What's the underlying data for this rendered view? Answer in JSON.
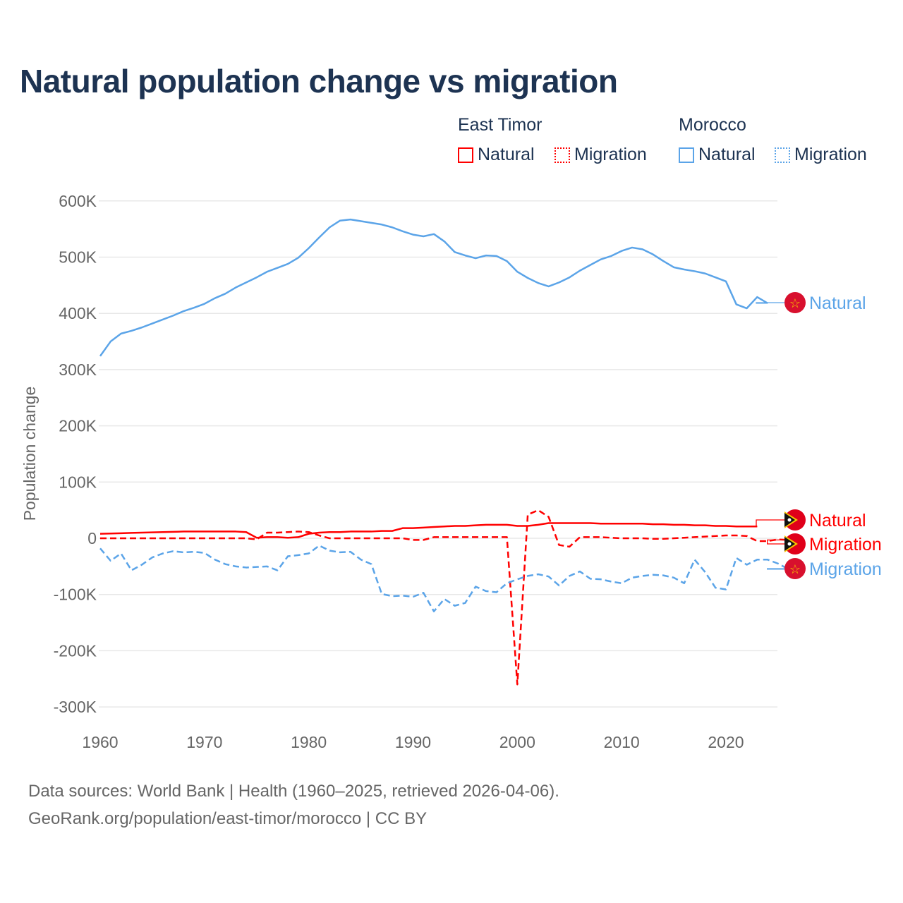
{
  "chart_data": {
    "type": "line",
    "title": "Natural population change vs migration",
    "ylabel": "Population change",
    "xlabel": "",
    "ylim": [
      -300000,
      600000
    ],
    "xlim": [
      1960,
      2025
    ],
    "yticks": [
      "600K",
      "500K",
      "400K",
      "300K",
      "200K",
      "100K",
      "0",
      "-100K",
      "-200K",
      "-300K"
    ],
    "ytick_values": [
      600000,
      500000,
      400000,
      300000,
      200000,
      100000,
      0,
      -100000,
      -200000,
      -300000
    ],
    "xticks": [
      "1960",
      "1970",
      "1980",
      "1990",
      "2000",
      "2010",
      "2020"
    ],
    "xtick_values": [
      1960,
      1970,
      1980,
      1990,
      2000,
      2010,
      2020
    ],
    "grid": true,
    "legend": {
      "placement": "top-right",
      "groups": [
        {
          "country": "East Timor",
          "items": [
            "Natural",
            "Migration"
          ]
        },
        {
          "country": "Morocco",
          "items": [
            "Natural",
            "Migration"
          ]
        }
      ]
    },
    "series": [
      {
        "name": "Morocco Natural",
        "label": "Natural",
        "color": "#5ba4e8",
        "dash": false,
        "start": 1960,
        "values": [
          324,
          350,
          364,
          369,
          375,
          382,
          389,
          396,
          404,
          410,
          417,
          427,
          435,
          446,
          455,
          464,
          474,
          481,
          488,
          499,
          516,
          535,
          553,
          565,
          567,
          564,
          561,
          558,
          553,
          546,
          540,
          537,
          541,
          528,
          509,
          503,
          498,
          503,
          502,
          493,
          474,
          463,
          454,
          448,
          455,
          464,
          476,
          486,
          496,
          502,
          511,
          517,
          514,
          505,
          493,
          482,
          478,
          475,
          471,
          464,
          457,
          416,
          409,
          429,
          418
        ]
      },
      {
        "name": "East Timor Natural",
        "label": "Natural",
        "color": "#ff0000",
        "dash": false,
        "start": 1960,
        "values": [
          8,
          8.5,
          9,
          9.5,
          10,
          10.5,
          11,
          11.5,
          12,
          12,
          12,
          12,
          12,
          12,
          11,
          1,
          2,
          2,
          1,
          2,
          8,
          10,
          11,
          11,
          12,
          12,
          12,
          13,
          13,
          18,
          18,
          19,
          20,
          21,
          22,
          22,
          23,
          24,
          24,
          24,
          22,
          22,
          24,
          27,
          27,
          27,
          27,
          27,
          26,
          26,
          26,
          26,
          26,
          25,
          25,
          24,
          24,
          23,
          23,
          22,
          22,
          21,
          21,
          21
        ]
      },
      {
        "name": "East Timor Migration",
        "label": "Migration",
        "color": "#ff0000",
        "dash": true,
        "start": 1960,
        "values": [
          0,
          0,
          0,
          0,
          0,
          0,
          0,
          0,
          0,
          0,
          0,
          0,
          0,
          0,
          0,
          -2,
          10,
          10,
          11,
          12,
          11,
          5,
          0,
          0,
          0,
          0,
          0,
          0,
          0,
          0,
          -3,
          -3,
          2,
          2,
          2,
          2,
          2,
          2,
          2,
          2,
          -260,
          42,
          50,
          38,
          -12,
          -15,
          2,
          2,
          2,
          1,
          0,
          0,
          0,
          -1,
          -1,
          0,
          1,
          2,
          3,
          4,
          5,
          5,
          4,
          -5,
          -5,
          -2,
          -3
        ]
      },
      {
        "name": "Morocco Migration",
        "label": "Migration",
        "color": "#5ba4e8",
        "dash": true,
        "start": 1960,
        "values": [
          -18,
          -40,
          -27,
          -57,
          -47,
          -34,
          -27,
          -23,
          -25,
          -24,
          -26,
          -38,
          -46,
          -50,
          -52,
          -51,
          -50,
          -57,
          -32,
          -30,
          -27,
          -13,
          -22,
          -25,
          -24,
          -38,
          -46,
          -99,
          -103,
          -102,
          -104,
          -97,
          -130,
          -108,
          -120,
          -115,
          -86,
          -94,
          -96,
          -80,
          -73,
          -67,
          -64,
          -68,
          -84,
          -67,
          -59,
          -72,
          -73,
          -77,
          -80,
          -70,
          -67,
          -65,
          -66,
          -70,
          -80,
          -38,
          -60,
          -88,
          -91,
          -35,
          -47,
          -38,
          -38,
          -45,
          -55
        ]
      }
    ],
    "value_unit": "thousands"
  },
  "source_line1": "Data sources: World Bank | Health (1960–2025, retrieved 2026-04-06).",
  "source_line2": "GeoRank.org/population/east-timor/morocco | CC BY"
}
